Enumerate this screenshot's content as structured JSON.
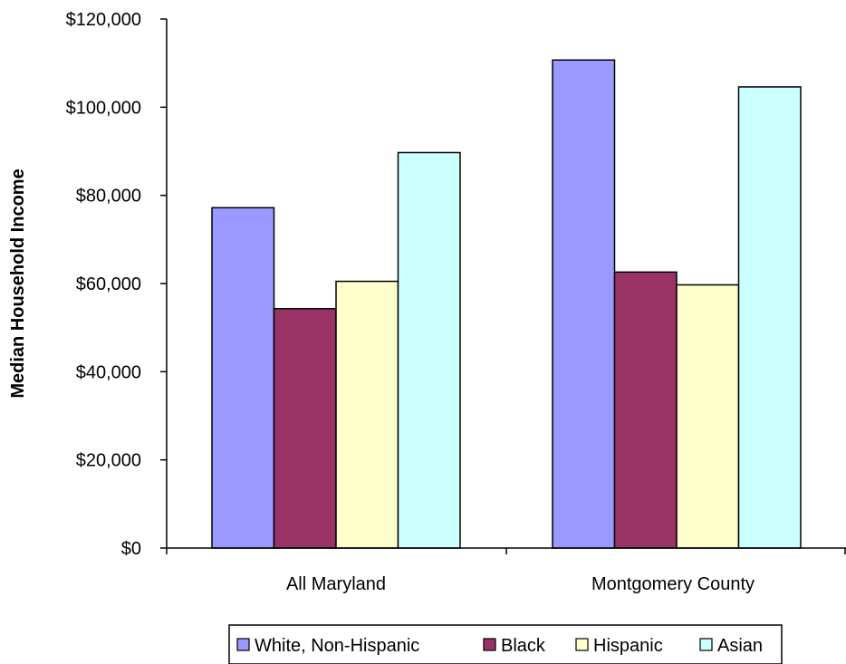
{
  "chart_data": {
    "type": "bar",
    "title": "",
    "xlabel": "",
    "ylabel": "Median Household Income",
    "categories": [
      "All Maryland",
      "Montgomery County"
    ],
    "series": [
      {
        "name": "White, Non-Hispanic",
        "values": [
          77200,
          110700
        ],
        "color": "#9999ff"
      },
      {
        "name": "Black",
        "values": [
          54300,
          62600
        ],
        "color": "#993366"
      },
      {
        "name": "Hispanic",
        "values": [
          60500,
          59700
        ],
        "color": "#ffffcc"
      },
      {
        "name": "Asian",
        "values": [
          89700,
          104600
        ],
        "color": "#ccffff"
      }
    ],
    "ylim": [
      0,
      120000
    ],
    "yticks": [
      0,
      20000,
      40000,
      60000,
      80000,
      100000,
      120000
    ],
    "ytick_labels": [
      "$0",
      "$20,000",
      "$40,000",
      "$60,000",
      "$80,000",
      "$100,000",
      "$120,000"
    ],
    "grid": false,
    "legend_position": "bottom"
  }
}
